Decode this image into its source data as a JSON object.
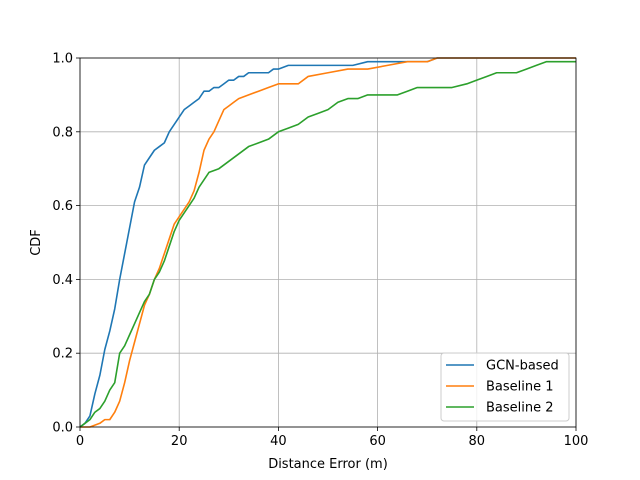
{
  "chart_data": {
    "type": "line",
    "title": "",
    "xlabel": "Distance Error (m)",
    "ylabel": "CDF",
    "xlim": [
      0,
      100
    ],
    "ylim": [
      0,
      1.0
    ],
    "xticks": [
      0,
      20,
      40,
      60,
      80,
      100
    ],
    "yticks": [
      0.0,
      0.2,
      0.4,
      0.6,
      0.8,
      1.0
    ],
    "xtick_labels": [
      "0",
      "20",
      "40",
      "60",
      "80",
      "100"
    ],
    "ytick_labels": [
      "0.0",
      "0.2",
      "0.4",
      "0.6",
      "0.8",
      "1.0"
    ],
    "grid": true,
    "legend_position": "bottom-right",
    "series": [
      {
        "name": "GCN-based",
        "color": "#1f77b4",
        "x": [
          0,
          1,
          2,
          3,
          4,
          5,
          6,
          7,
          8,
          9,
          10,
          11,
          12,
          13,
          14,
          15,
          16,
          17,
          18,
          19,
          20,
          21,
          22,
          23,
          24,
          25,
          26,
          27,
          28,
          29,
          30,
          31,
          32,
          33,
          34,
          35,
          36,
          37,
          38,
          39,
          40,
          42,
          44,
          46,
          50,
          55,
          58,
          60,
          65,
          70,
          72,
          100
        ],
        "y": [
          0.0,
          0.01,
          0.03,
          0.09,
          0.14,
          0.21,
          0.26,
          0.32,
          0.4,
          0.47,
          0.54,
          0.61,
          0.65,
          0.71,
          0.73,
          0.75,
          0.76,
          0.77,
          0.8,
          0.82,
          0.84,
          0.86,
          0.87,
          0.88,
          0.89,
          0.91,
          0.91,
          0.92,
          0.92,
          0.93,
          0.94,
          0.94,
          0.95,
          0.95,
          0.96,
          0.96,
          0.96,
          0.96,
          0.96,
          0.97,
          0.97,
          0.98,
          0.98,
          0.98,
          0.98,
          0.98,
          0.99,
          0.99,
          0.99,
          0.99,
          1.0,
          1.0
        ]
      },
      {
        "name": "Baseline 1",
        "color": "#ff7f0e",
        "x": [
          0,
          2,
          4,
          5,
          6,
          7,
          8,
          9,
          10,
          11,
          12,
          13,
          14,
          15,
          16,
          17,
          18,
          19,
          20,
          21,
          22,
          23,
          24,
          25,
          26,
          27,
          28,
          29,
          30,
          31,
          32,
          34,
          36,
          38,
          40,
          44,
          46,
          50,
          54,
          58,
          62,
          66,
          70,
          72,
          90,
          100
        ],
        "y": [
          0.0,
          0.0,
          0.01,
          0.02,
          0.02,
          0.04,
          0.07,
          0.12,
          0.18,
          0.23,
          0.28,
          0.33,
          0.36,
          0.4,
          0.43,
          0.47,
          0.51,
          0.55,
          0.57,
          0.59,
          0.61,
          0.64,
          0.69,
          0.75,
          0.78,
          0.8,
          0.83,
          0.86,
          0.87,
          0.88,
          0.89,
          0.9,
          0.91,
          0.92,
          0.93,
          0.93,
          0.95,
          0.96,
          0.97,
          0.97,
          0.98,
          0.99,
          0.99,
          1.0,
          1.0,
          1.0
        ]
      },
      {
        "name": "Baseline 2",
        "color": "#2ca02c",
        "x": [
          0,
          1,
          2,
          3,
          4,
          5,
          6,
          7,
          8,
          9,
          10,
          11,
          12,
          13,
          14,
          15,
          16,
          17,
          18,
          19,
          20,
          21,
          22,
          23,
          24,
          25,
          26,
          28,
          30,
          32,
          34,
          36,
          38,
          40,
          42,
          44,
          46,
          48,
          50,
          52,
          54,
          56,
          58,
          60,
          62,
          64,
          66,
          68,
          70,
          75,
          78,
          80,
          82,
          84,
          88,
          90,
          92,
          94,
          100
        ],
        "y": [
          0.0,
          0.01,
          0.02,
          0.04,
          0.05,
          0.07,
          0.1,
          0.12,
          0.2,
          0.22,
          0.25,
          0.28,
          0.31,
          0.34,
          0.36,
          0.4,
          0.42,
          0.45,
          0.49,
          0.53,
          0.56,
          0.58,
          0.6,
          0.62,
          0.65,
          0.67,
          0.69,
          0.7,
          0.72,
          0.74,
          0.76,
          0.77,
          0.78,
          0.8,
          0.81,
          0.82,
          0.84,
          0.85,
          0.86,
          0.88,
          0.89,
          0.89,
          0.9,
          0.9,
          0.9,
          0.9,
          0.91,
          0.92,
          0.92,
          0.92,
          0.93,
          0.94,
          0.95,
          0.96,
          0.96,
          0.97,
          0.98,
          0.99,
          0.99
        ]
      }
    ]
  }
}
